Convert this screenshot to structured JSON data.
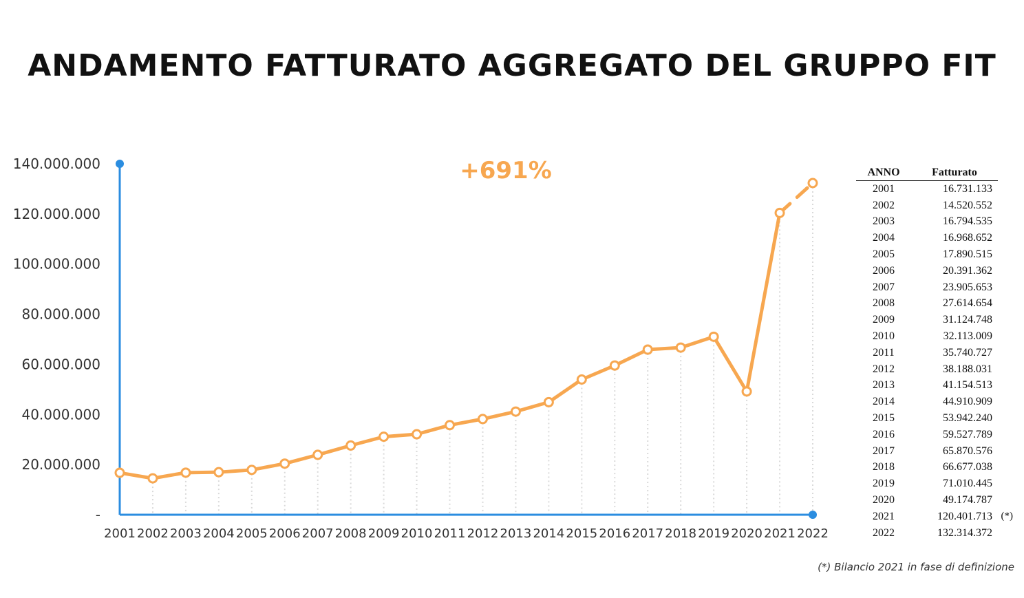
{
  "title": "ANDAMENTO FATTURATO AGGREGATO DEL GRUPPO FIT",
  "growth_label": "+691%",
  "footnote": "(*) Bilancio 2021 in fase di definizione",
  "colors": {
    "line": "#f7a750",
    "axis": "#2b8de0",
    "grid": "#d9d9d9"
  },
  "table": {
    "headers": [
      "ANNO",
      "Fatturato"
    ],
    "rows": [
      {
        "year": "2001",
        "value": "16.731.133",
        "note": ""
      },
      {
        "year": "2002",
        "value": "14.520.552",
        "note": ""
      },
      {
        "year": "2003",
        "value": "16.794.535",
        "note": ""
      },
      {
        "year": "2004",
        "value": "16.968.652",
        "note": ""
      },
      {
        "year": "2005",
        "value": "17.890.515",
        "note": ""
      },
      {
        "year": "2006",
        "value": "20.391.362",
        "note": ""
      },
      {
        "year": "2007",
        "value": "23.905.653",
        "note": ""
      },
      {
        "year": "2008",
        "value": "27.614.654",
        "note": ""
      },
      {
        "year": "2009",
        "value": "31.124.748",
        "note": ""
      },
      {
        "year": "2010",
        "value": "32.113.009",
        "note": ""
      },
      {
        "year": "2011",
        "value": "35.740.727",
        "note": ""
      },
      {
        "year": "2012",
        "value": "38.188.031",
        "note": ""
      },
      {
        "year": "2013",
        "value": "41.154.513",
        "note": ""
      },
      {
        "year": "2014",
        "value": "44.910.909",
        "note": ""
      },
      {
        "year": "2015",
        "value": "53.942.240",
        "note": ""
      },
      {
        "year": "2016",
        "value": "59.527.789",
        "note": ""
      },
      {
        "year": "2017",
        "value": "65.870.576",
        "note": ""
      },
      {
        "year": "2018",
        "value": "66.677.038",
        "note": ""
      },
      {
        "year": "2019",
        "value": "71.010.445",
        "note": ""
      },
      {
        "year": "2020",
        "value": "49.174.787",
        "note": ""
      },
      {
        "year": "2021",
        "value": "120.401.713",
        "note": "(*)"
      },
      {
        "year": "2022",
        "value": "132.314.372",
        "note": ""
      }
    ]
  },
  "chart_data": {
    "type": "line",
    "title": "ANDAMENTO FATTURATO AGGREGATO DEL GRUPPO FIT",
    "xlabel": "",
    "ylabel": "",
    "ylim": [
      0,
      140000000
    ],
    "y_ticks": [
      0,
      20000000,
      40000000,
      60000000,
      80000000,
      100000000,
      120000000,
      140000000
    ],
    "y_tick_labels": [
      "-",
      "20.000.000",
      "40.000.000",
      "60.000.000",
      "80.000.000",
      "100.000.000",
      "120.000.000",
      "140.000.000"
    ],
    "x": [
      "2001",
      "2002",
      "2003",
      "2004",
      "2005",
      "2006",
      "2007",
      "2008",
      "2009",
      "2010",
      "2011",
      "2012",
      "2013",
      "2014",
      "2015",
      "2016",
      "2017",
      "2018",
      "2019",
      "2020",
      "2021",
      "2022"
    ],
    "series": [
      {
        "values": [
          16731133,
          14520552,
          16794535,
          16968652,
          17890515,
          20391362,
          23905653,
          27614654,
          31124748,
          32113009,
          35740727,
          38188031,
          41154513,
          44910909,
          53942240,
          59527789,
          65870576,
          66677038,
          71010445,
          49174787,
          120401713,
          132314372
        ],
        "dashed_last_segment": true
      }
    ],
    "grid": false,
    "drop_lines": true,
    "annotation": "+691%"
  }
}
